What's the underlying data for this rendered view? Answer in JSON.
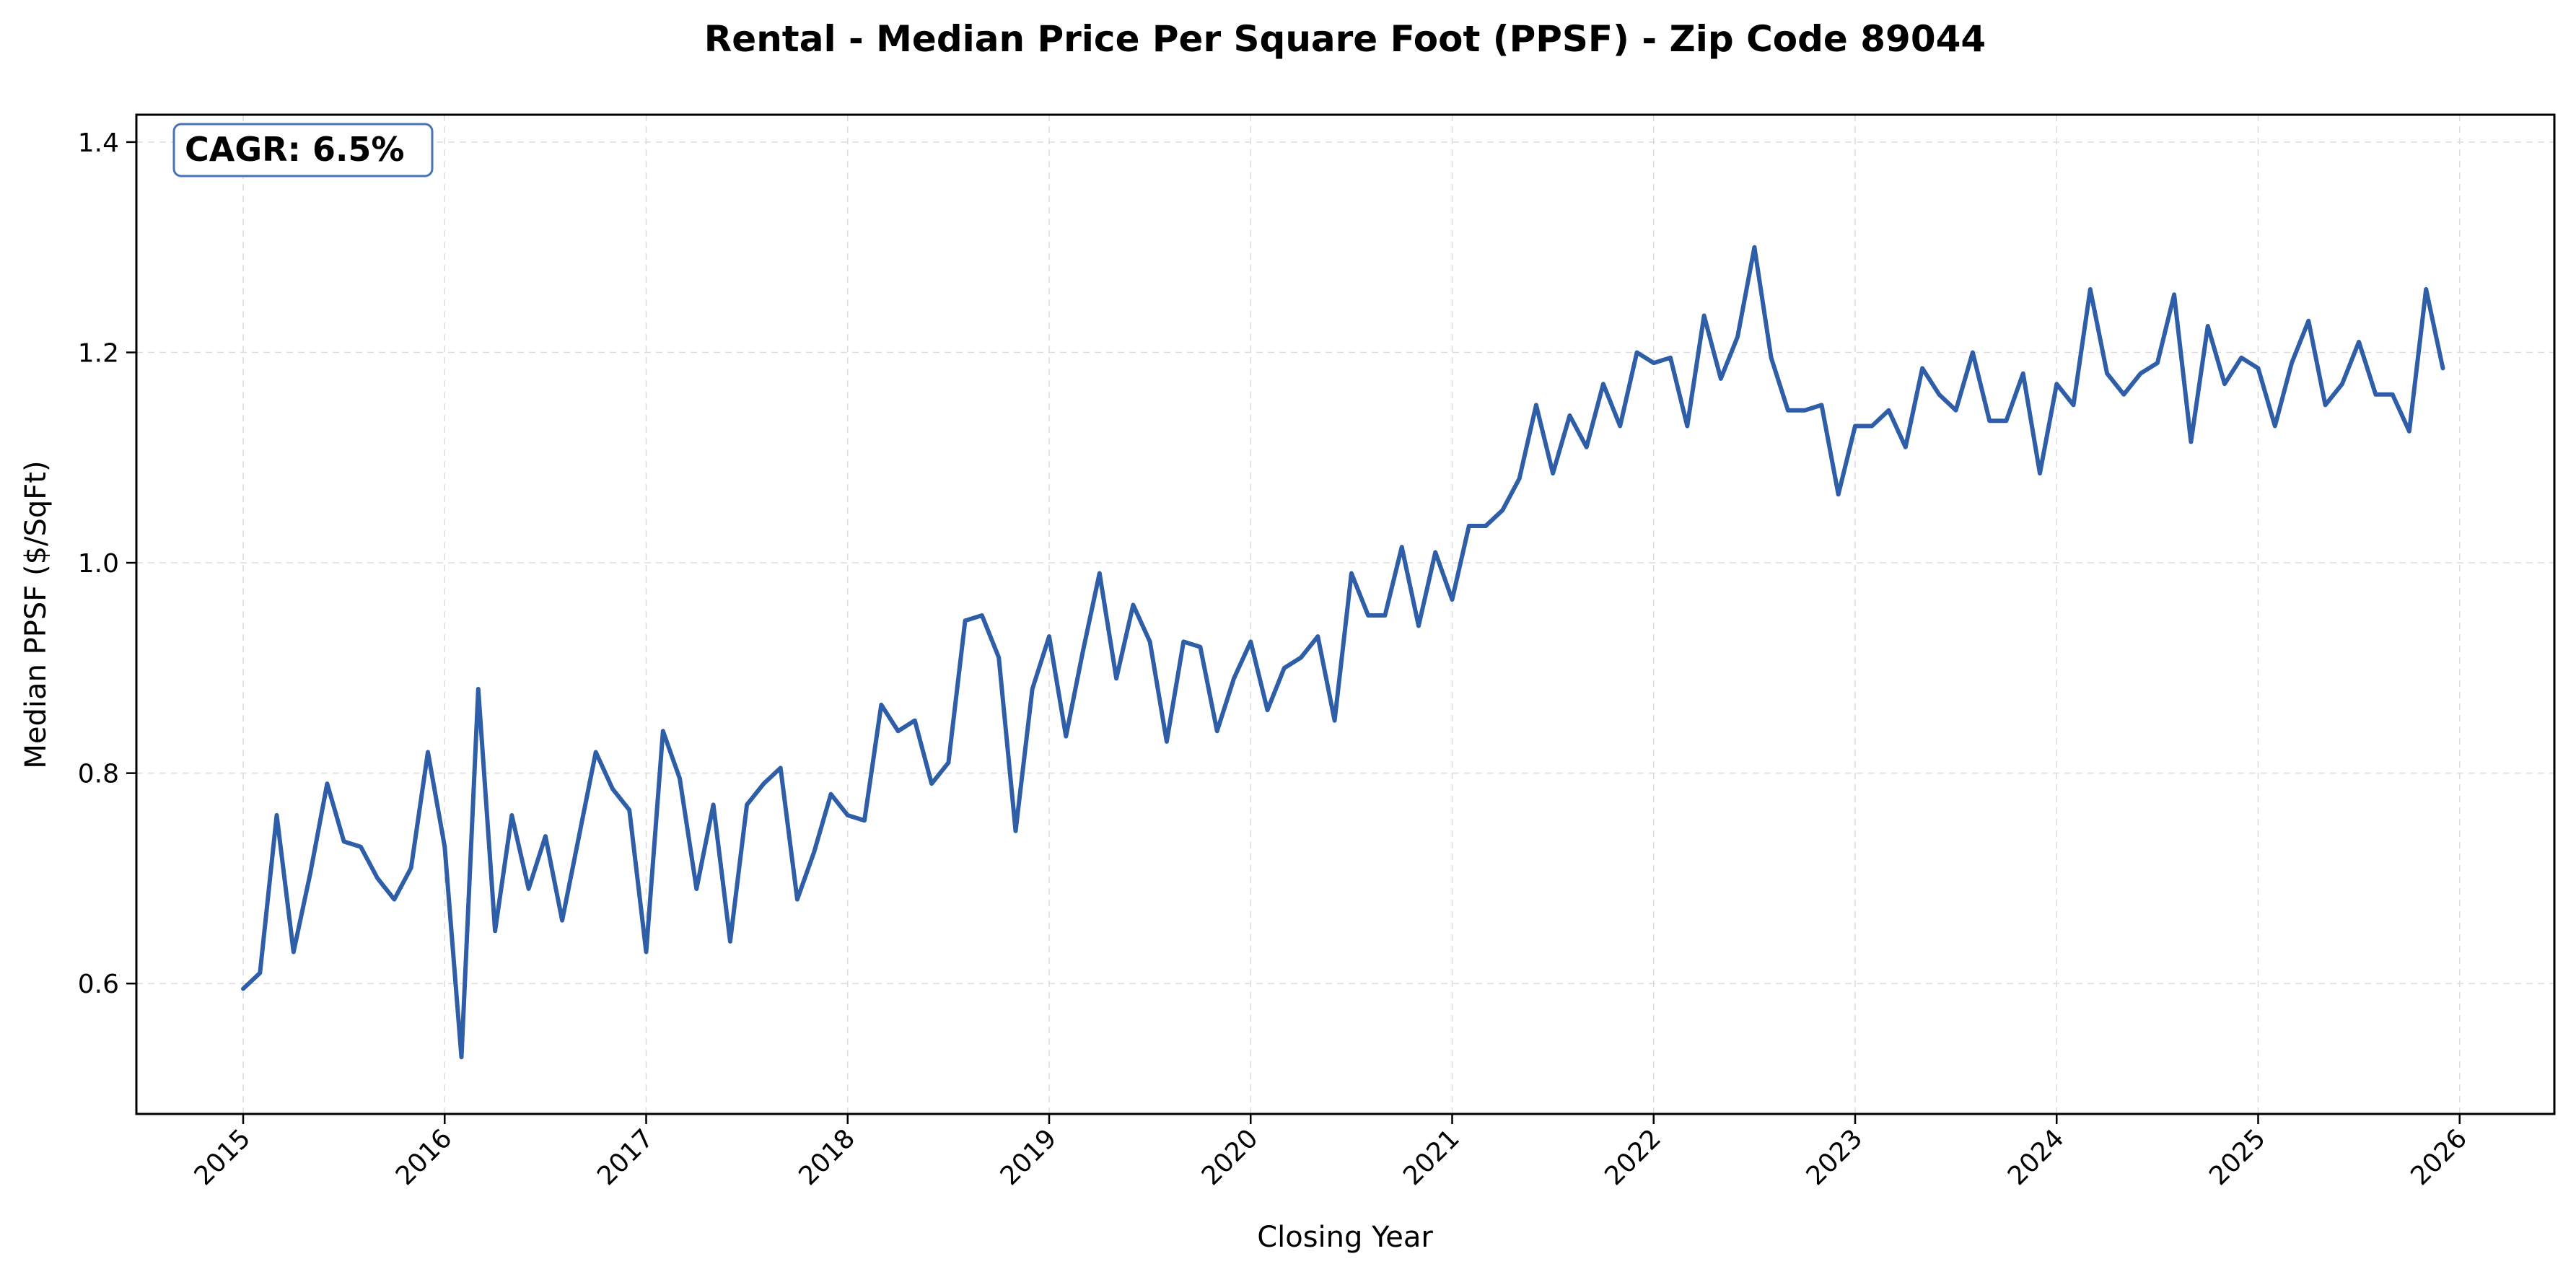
{
  "colors": {
    "series": "#2f5ea8",
    "cagr_border": "#4a72b8"
  },
  "chart_data": {
    "type": "line",
    "title": "Rental - Median Price Per Square Foot (PPSF) - Zip Code 89044",
    "xlabel": "Closing Year",
    "ylabel": "Median PPSF ($/SqFt)",
    "annotation": "CAGR: 6.5%",
    "annotation_position": "top-left",
    "xlim": [
      2014.47,
      2026.47
    ],
    "ylim": [
      0.476,
      1.426
    ],
    "x_ticks": [
      2015,
      2016,
      2017,
      2018,
      2019,
      2020,
      2021,
      2022,
      2023,
      2024,
      2025,
      2026
    ],
    "x_tick_labels": [
      "2015",
      "2016",
      "2017",
      "2018",
      "2019",
      "2020",
      "2021",
      "2022",
      "2023",
      "2024",
      "2025",
      "2026"
    ],
    "y_ticks": [
      0.6,
      0.8,
      1.0,
      1.2,
      1.4
    ],
    "y_tick_labels": [
      "0.6",
      "0.8",
      "1.0",
      "1.2",
      "1.4"
    ],
    "grid": true,
    "series": [
      {
        "name": "Median PPSF",
        "start_year": 2015,
        "step": "monthly",
        "values": [
          0.595,
          0.61,
          0.76,
          0.63,
          0.705,
          0.79,
          0.735,
          0.73,
          0.7,
          0.68,
          0.71,
          0.82,
          0.73,
          0.53,
          0.88,
          0.65,
          0.76,
          0.69,
          0.74,
          0.66,
          0.74,
          0.82,
          0.785,
          0.765,
          0.63,
          0.84,
          0.795,
          0.69,
          0.77,
          0.64,
          0.77,
          0.79,
          0.805,
          0.68,
          0.725,
          0.78,
          0.76,
          0.755,
          0.865,
          0.84,
          0.85,
          0.79,
          0.81,
          0.945,
          0.95,
          0.91,
          0.745,
          0.88,
          0.93,
          0.835,
          0.915,
          0.99,
          0.89,
          0.96,
          0.925,
          0.83,
          0.925,
          0.92,
          0.84,
          0.89,
          0.925,
          0.86,
          0.9,
          0.91,
          0.93,
          0.85,
          0.99,
          0.95,
          0.95,
          1.015,
          0.94,
          1.01,
          0.965,
          1.035,
          1.035,
          1.05,
          1.08,
          1.15,
          1.085,
          1.14,
          1.11,
          1.17,
          1.13,
          1.2,
          1.19,
          1.195,
          1.13,
          1.235,
          1.175,
          1.215,
          1.3,
          1.195,
          1.145,
          1.145,
          1.15,
          1.065,
          1.13,
          1.13,
          1.145,
          1.11,
          1.185,
          1.16,
          1.145,
          1.2,
          1.135,
          1.135,
          1.18,
          1.085,
          1.17,
          1.15,
          1.26,
          1.18,
          1.16,
          1.18,
          1.19,
          1.255,
          1.115,
          1.225,
          1.17,
          1.195,
          1.185,
          1.13,
          1.19,
          1.23,
          1.15,
          1.17,
          1.21,
          1.16,
          1.16,
          1.125,
          1.26,
          1.185
        ]
      }
    ]
  }
}
